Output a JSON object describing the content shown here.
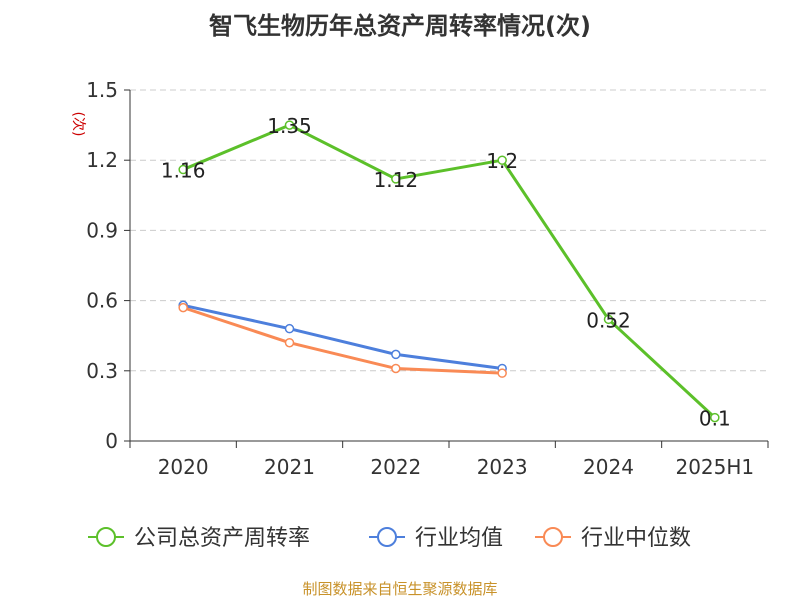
{
  "chart_data": {
    "type": "line",
    "title": "智飞生物历年总资产周转率情况(次)",
    "ylabel": "(次)",
    "xlabel": "",
    "categories": [
      "2020",
      "2021",
      "2022",
      "2023",
      "2024",
      "2025H1"
    ],
    "ylim": [
      0,
      1.5
    ],
    "yticks": [
      "0",
      "0.3",
      "0.6",
      "0.9",
      "1.2",
      "1.5"
    ],
    "grid": true,
    "legend_position": "bottom",
    "series": [
      {
        "name": "公司总资产周转率",
        "color": "#5cc02a",
        "values": [
          1.16,
          1.35,
          1.12,
          1.2,
          0.52,
          0.1
        ],
        "data_labels": [
          "1.16",
          "1.35",
          "1.12",
          "1.2",
          "0.52",
          "0.1"
        ]
      },
      {
        "name": "行业均值",
        "color": "#4d7fdc",
        "values": [
          0.58,
          0.48,
          0.37,
          0.31,
          null,
          null
        ]
      },
      {
        "name": "行业中位数",
        "color": "#f98a55",
        "values": [
          0.57,
          0.42,
          0.31,
          0.29,
          null,
          null
        ]
      }
    ]
  },
  "source_text": "制图数据来自恒生聚源数据库",
  "colors": {
    "axis": "#333333",
    "grid": "#cccccc",
    "ylabel": "#cc0000",
    "source": "#c8922a"
  }
}
